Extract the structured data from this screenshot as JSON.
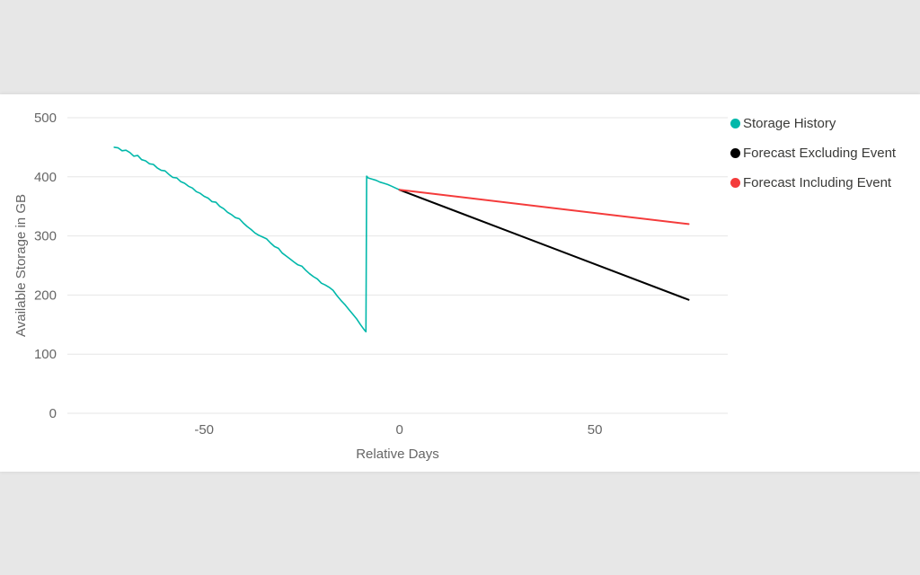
{
  "page": {
    "background_color": "#e7e7e7",
    "panel_background_color": "#ffffff"
  },
  "chart_data": {
    "type": "line",
    "title": "",
    "xlabel": "Relative Days",
    "ylabel": "Available Storage in GB",
    "xlim": [
      -85,
      84
    ],
    "ylim": [
      0,
      500
    ],
    "x_ticks": [
      -50,
      0,
      50
    ],
    "y_ticks": [
      0,
      100,
      200,
      300,
      400,
      500
    ],
    "grid": true,
    "legend_position": "top-right",
    "axis_text_color": "#666666",
    "legend_text_color": "#3a3a38",
    "grid_color": "#e6e6e6",
    "series": [
      {
        "name": "Storage History",
        "color": "#01b8aa",
        "stroke_width": 1.6,
        "points": [
          [
            -73,
            450
          ],
          [
            -72,
            449
          ],
          [
            -71,
            444
          ],
          [
            -70,
            445
          ],
          [
            -69,
            441
          ],
          [
            -68,
            435
          ],
          [
            -67,
            436
          ],
          [
            -66,
            429
          ],
          [
            -65,
            427
          ],
          [
            -64,
            422
          ],
          [
            -63,
            421
          ],
          [
            -62,
            415
          ],
          [
            -61,
            411
          ],
          [
            -60,
            410
          ],
          [
            -59,
            404
          ],
          [
            -58,
            399
          ],
          [
            -57,
            398
          ],
          [
            -56,
            392
          ],
          [
            -55,
            389
          ],
          [
            -54,
            384
          ],
          [
            -53,
            381
          ],
          [
            -52,
            375
          ],
          [
            -51,
            372
          ],
          [
            -50,
            367
          ],
          [
            -49,
            364
          ],
          [
            -48,
            358
          ],
          [
            -47,
            357
          ],
          [
            -46,
            350
          ],
          [
            -45,
            346
          ],
          [
            -44,
            340
          ],
          [
            -43,
            336
          ],
          [
            -42,
            331
          ],
          [
            -41,
            329
          ],
          [
            -40,
            322
          ],
          [
            -39,
            316
          ],
          [
            -38,
            311
          ],
          [
            -37,
            305
          ],
          [
            -36,
            301
          ],
          [
            -35,
            298
          ],
          [
            -34,
            295
          ],
          [
            -33,
            288
          ],
          [
            -32,
            282
          ],
          [
            -31,
            279
          ],
          [
            -30,
            271
          ],
          [
            -29,
            266
          ],
          [
            -28,
            261
          ],
          [
            -27,
            256
          ],
          [
            -26,
            251
          ],
          [
            -25,
            249
          ],
          [
            -24,
            242
          ],
          [
            -23,
            236
          ],
          [
            -22,
            231
          ],
          [
            -21,
            227
          ],
          [
            -20,
            220
          ],
          [
            -19,
            217
          ],
          [
            -18,
            213
          ],
          [
            -17,
            208
          ],
          [
            -16,
            199
          ],
          [
            -15,
            191
          ],
          [
            -14,
            184
          ],
          [
            -13,
            176
          ],
          [
            -12,
            168
          ],
          [
            -11,
            160
          ],
          [
            -10,
            150
          ],
          [
            -9,
            141
          ],
          [
            -8.6,
            138
          ],
          [
            -8.4,
            401
          ],
          [
            -8,
            398
          ],
          [
            -7,
            396
          ],
          [
            -6,
            394
          ],
          [
            -5,
            391
          ],
          [
            -4,
            389
          ],
          [
            -3,
            387
          ],
          [
            -2,
            384
          ],
          [
            -1,
            381
          ],
          [
            0,
            378
          ]
        ]
      },
      {
        "name": "Forecast Excluding Event",
        "color": "#000000",
        "stroke_width": 2,
        "points": [
          [
            0,
            378
          ],
          [
            74,
            192
          ]
        ]
      },
      {
        "name": "Forecast Including Event",
        "color": "#f43b3b",
        "stroke_width": 2,
        "points": [
          [
            0,
            378
          ],
          [
            74,
            320
          ]
        ]
      }
    ]
  },
  "legend": {
    "items": [
      {
        "label": "Storage History",
        "color": "#01b8aa"
      },
      {
        "label": "Forecast Excluding Event",
        "color": "#000000"
      },
      {
        "label": "Forecast Including Event",
        "color": "#f43b3b"
      }
    ]
  }
}
